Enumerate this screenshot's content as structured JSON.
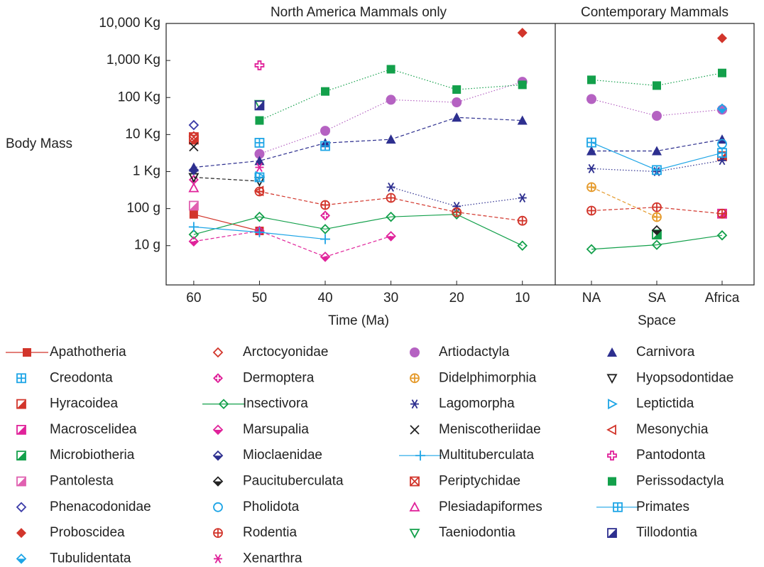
{
  "chart_data": {
    "type": "line",
    "log_y": true,
    "y_label": "Body Mass",
    "ylim": [
      0.00087,
      10000
    ],
    "yticks": [
      {
        "value": 0.01,
        "label": "10 g"
      },
      {
        "value": 0.1,
        "label": "100 g"
      },
      {
        "value": 1,
        "label": "1 Kg"
      },
      {
        "value": 10,
        "label": "10 Kg"
      },
      {
        "value": 100,
        "label": "100 Kg"
      },
      {
        "value": 1000,
        "label": "1,000 Kg"
      },
      {
        "value": 10000,
        "label": "10,000 Kg"
      }
    ],
    "panel_titles": [
      "North America Mammals only",
      "Contemporary Mammals"
    ],
    "x_label": "Time (Ma)",
    "x": [
      60,
      50,
      40,
      30,
      20,
      10
    ],
    "xlim": [
      64.2,
      5.0
    ],
    "space_label": "Space",
    "space_categories": [
      "NA",
      "SA",
      "Africa"
    ],
    "series": [
      {
        "name": "Apathotheria",
        "color": "#d2352b",
        "marker": "square",
        "line": "solid",
        "values": [
          0.07,
          0.025,
          null,
          null,
          null,
          null
        ],
        "values_space": [
          null,
          null,
          null
        ]
      },
      {
        "name": "Arctocyonidae",
        "color": "#d2352b",
        "marker": "diamond-open",
        "line": null,
        "values": [
          9,
          null,
          null,
          null,
          null,
          null
        ],
        "values_space": [
          null,
          null,
          null
        ]
      },
      {
        "name": "Artiodactyla",
        "color": "#b562c2",
        "marker": "circle",
        "line": "dotted",
        "values": [
          null,
          3.0,
          12.6,
          87,
          74,
          265
        ],
        "values_space": [
          91,
          32,
          47
        ]
      },
      {
        "name": "Carnivora",
        "color": "#2d2f8f",
        "marker": "triangle",
        "line": "dashed",
        "values": [
          1.3,
          1.95,
          5.9,
          7.4,
          29,
          24
        ],
        "values_space": [
          3.6,
          3.6,
          7.4
        ]
      },
      {
        "name": "Creodonta",
        "color": "#1ea5e6",
        "marker": "box-plus",
        "line": null,
        "values": [
          null,
          6,
          4.9,
          null,
          null,
          null
        ],
        "values_space": [
          null,
          null,
          null
        ]
      },
      {
        "name": "Dermoptera",
        "color": "#e0229a",
        "marker": "diamond-plus",
        "line": null,
        "values": [
          0.6,
          null,
          0.065,
          null,
          null,
          null
        ],
        "values_space": [
          null,
          null,
          null
        ]
      },
      {
        "name": "Didelphimorphia",
        "color": "#e59a2b",
        "marker": "circle-plus",
        "line": "dashed",
        "values": [
          null,
          null,
          null,
          null,
          null,
          null
        ],
        "values_space": [
          0.38,
          0.059,
          null
        ]
      },
      {
        "name": "Hyopsodontidae",
        "color": "#222222",
        "marker": "dtri-open",
        "line": "dashed",
        "values": [
          0.7,
          0.55,
          null,
          null,
          null,
          null
        ],
        "values_space": [
          null,
          null,
          null
        ]
      },
      {
        "name": "Hyracoidea",
        "color": "#d2352b",
        "marker": "half-square",
        "line": null,
        "values": [
          7.3,
          null,
          null,
          null,
          null,
          null
        ],
        "values_space": [
          null,
          null,
          2.6
        ]
      },
      {
        "name": "Insectivora",
        "color": "#13a04b",
        "marker": "diamond-open",
        "line": "solid",
        "values": [
          0.02,
          0.06,
          0.028,
          0.06,
          0.07,
          0.01
        ],
        "values_space": [
          0.008,
          0.0105,
          0.019
        ]
      },
      {
        "name": "Lagomorpha",
        "color": "#2d2f8f",
        "marker": "asterisk",
        "line": "dotted",
        "values": [
          null,
          null,
          null,
          0.38,
          0.115,
          0.195
        ],
        "values_space": [
          1.2,
          1.0,
          2.0
        ]
      },
      {
        "name": "Leptictida",
        "color": "#1ea5e6",
        "marker": "rtri-open",
        "line": null,
        "values": [
          null,
          0.75,
          null,
          null,
          null,
          null
        ],
        "values_space": [
          null,
          null,
          null
        ]
      },
      {
        "name": "Macroscelidea",
        "color": "#e0229a",
        "marker": "half-square",
        "line": null,
        "values": [
          null,
          null,
          null,
          null,
          null,
          null
        ],
        "values_space": [
          null,
          null,
          0.073
        ]
      },
      {
        "name": "Marsupalia",
        "color": "#e0229a",
        "marker": "half-diamond",
        "line": "dashed",
        "values": [
          0.013,
          0.025,
          0.005,
          0.018,
          null,
          null
        ],
        "values_space": [
          null,
          null,
          null
        ]
      },
      {
        "name": "Meniscotheriidae",
        "color": "#222222",
        "marker": "x",
        "line": null,
        "values": [
          4.7,
          null,
          null,
          null,
          null,
          null
        ],
        "values_space": [
          null,
          null,
          null
        ]
      },
      {
        "name": "Mesonychia",
        "color": "#d2352b",
        "marker": "ltri-open",
        "line": null,
        "values": [
          null,
          0.3,
          null,
          null,
          null,
          null
        ],
        "values_space": [
          null,
          null,
          null
        ]
      },
      {
        "name": "Microbiotheria",
        "color": "#13a04b",
        "marker": "half-square",
        "line": null,
        "values": [
          null,
          null,
          null,
          null,
          null,
          null
        ],
        "values_space": [
          null,
          0.02,
          null
        ]
      },
      {
        "name": "Mioclaenidae",
        "color": "#2d2f8f",
        "marker": "half-diamond",
        "line": null,
        "values": [
          1.1,
          null,
          null,
          null,
          null,
          null
        ],
        "values_space": [
          null,
          null,
          null
        ]
      },
      {
        "name": "Multituberculata",
        "color": "#1ea5e6",
        "marker": "plus",
        "line": "solid",
        "values": [
          0.032,
          0.023,
          0.015,
          null,
          null,
          null
        ],
        "values_space": [
          null,
          null,
          null
        ]
      },
      {
        "name": "Pantodonta",
        "color": "#e0229a",
        "marker": "cross-open",
        "line": null,
        "values": [
          null,
          740,
          null,
          null,
          null,
          null
        ],
        "values_space": [
          null,
          null,
          null
        ]
      },
      {
        "name": "Pantolesta",
        "color": "#e060b0",
        "marker": "half-square",
        "line": null,
        "values": [
          0.12,
          null,
          null,
          null,
          null,
          null
        ],
        "values_space": [
          null,
          null,
          null
        ]
      },
      {
        "name": "Paucituberculata",
        "color": "#222222",
        "marker": "half-diamond",
        "line": null,
        "values": [
          null,
          null,
          null,
          null,
          null,
          null
        ],
        "values_space": [
          null,
          0.026,
          null
        ]
      },
      {
        "name": "Periptychidae",
        "color": "#d2352b",
        "marker": "box-x",
        "line": null,
        "values": [
          8.5,
          null,
          null,
          null,
          null,
          null
        ],
        "values_space": [
          null,
          null,
          null
        ]
      },
      {
        "name": "Perissodactyla",
        "color": "#13a04b",
        "marker": "square",
        "line": "dotted",
        "values": [
          null,
          24,
          146,
          580,
          164,
          220
        ],
        "values_space": [
          300,
          210,
          460
        ]
      },
      {
        "name": "Phenacodonidae",
        "color": "#3c3ca8",
        "marker": "diamond-open",
        "line": null,
        "values": [
          18,
          null,
          null,
          null,
          null,
          null
        ],
        "values_space": [
          null,
          null,
          null
        ]
      },
      {
        "name": "Pholidota",
        "color": "#1ea5e6",
        "marker": "circle-open",
        "line": null,
        "values": [
          null,
          null,
          null,
          null,
          null,
          null
        ],
        "values_space": [
          null,
          null,
          5.6
        ]
      },
      {
        "name": "Plesiadapiformes",
        "color": "#e0229a",
        "marker": "triangle-open",
        "line": null,
        "values": [
          0.36,
          null,
          null,
          null,
          null,
          null
        ],
        "values_space": [
          null,
          null,
          null
        ]
      },
      {
        "name": "Primates",
        "color": "#1ea5e6",
        "marker": "box-plus",
        "line": "solid",
        "values": [
          null,
          0.7,
          null,
          null,
          null,
          null
        ],
        "values_space": [
          6.1,
          1.1,
          3.2
        ]
      },
      {
        "name": "Proboscidea",
        "color": "#d2352b",
        "marker": "diamond",
        "line": null,
        "values": [
          null,
          null,
          null,
          null,
          null,
          5600
        ],
        "values_space": [
          null,
          null,
          4000
        ]
      },
      {
        "name": "Rodentia",
        "color": "#d2352b",
        "marker": "circle-plus",
        "line": "dashed",
        "values": [
          null,
          0.29,
          0.125,
          0.195,
          0.08,
          0.047
        ],
        "values_space": [
          0.088,
          0.109,
          0.073
        ]
      },
      {
        "name": "Taeniodontia",
        "color": "#13a04b",
        "marker": "dtri-open",
        "line": null,
        "values": [
          null,
          66,
          null,
          null,
          null,
          null
        ],
        "values_space": [
          null,
          null,
          null
        ]
      },
      {
        "name": "Tillodontia",
        "color": "#2d2f8f",
        "marker": "half-square",
        "line": null,
        "values": [
          null,
          61,
          null,
          null,
          null,
          null
        ],
        "values_space": [
          null,
          null,
          null
        ]
      },
      {
        "name": "Tubulidentata",
        "color": "#1ea5e6",
        "marker": "half-diamond",
        "line": null,
        "values": [
          null,
          null,
          null,
          null,
          null,
          null
        ],
        "values_space": [
          null,
          null,
          50
        ]
      },
      {
        "name": "Xenarthra",
        "color": "#e0229a",
        "marker": "asterisk",
        "line": null,
        "values": [
          null,
          1.3,
          null,
          null,
          null,
          null
        ],
        "values_space": [
          null,
          null,
          null
        ]
      }
    ]
  }
}
